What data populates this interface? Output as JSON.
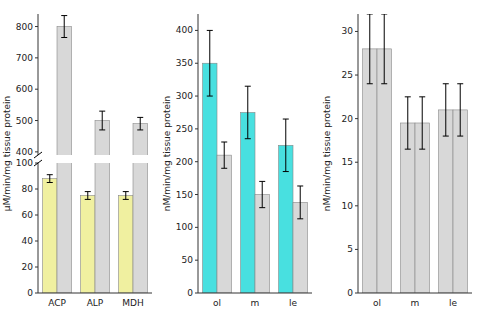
{
  "chart_data": [
    {
      "type": "bar",
      "y_label": "μM/min/mg tissue protein",
      "categories": [
        "ACP",
        "ALP",
        "MDH"
      ],
      "series": [
        {
          "color": "#f0f0a0",
          "values": [
            88,
            75,
            75
          ],
          "errors": [
            3,
            3,
            3
          ]
        },
        {
          "color": "#d8d8d8",
          "values": [
            800,
            500,
            490
          ],
          "errors": [
            35,
            30,
            20
          ],
          "axis": "y2"
        }
      ],
      "ylim": [
        0,
        100
      ],
      "yticks": [
        0,
        20,
        40,
        60,
        80,
        100
      ],
      "y2lim": [
        390,
        840
      ],
      "y2ticks": [
        400,
        500,
        600,
        700,
        800
      ],
      "grid": false
    },
    {
      "type": "bar",
      "y_label": "nM/min/mg tissue protein",
      "categories": [
        "ol",
        "m",
        "le"
      ],
      "series": [
        {
          "color": "#48e0e0",
          "values": [
            350,
            275,
            225
          ],
          "errors": [
            50,
            40,
            40
          ]
        },
        {
          "color": "#d8d8d8",
          "values": [
            210,
            150,
            138
          ],
          "errors": [
            20,
            20,
            25
          ]
        }
      ],
      "ylim": [
        0,
        425
      ],
      "yticks": [
        0,
        50,
        100,
        150,
        200,
        250,
        300,
        350,
        400
      ],
      "grid": false
    },
    {
      "type": "bar",
      "y_label": "nM/min/mg tissue protein",
      "categories": [
        "ol",
        "m",
        "le"
      ],
      "series": [
        {
          "color": "#d8d8d8",
          "values": [
            28,
            19.5,
            21
          ],
          "errors": [
            4,
            3,
            3
          ]
        },
        {
          "color": "#d8d8d8",
          "values": [
            28,
            19.5,
            21
          ],
          "errors": [
            4,
            3,
            3
          ]
        }
      ],
      "ylim": [
        0,
        32
      ],
      "yticks": [
        0,
        5,
        10,
        15,
        20,
        25,
        30
      ],
      "grid": false
    }
  ]
}
